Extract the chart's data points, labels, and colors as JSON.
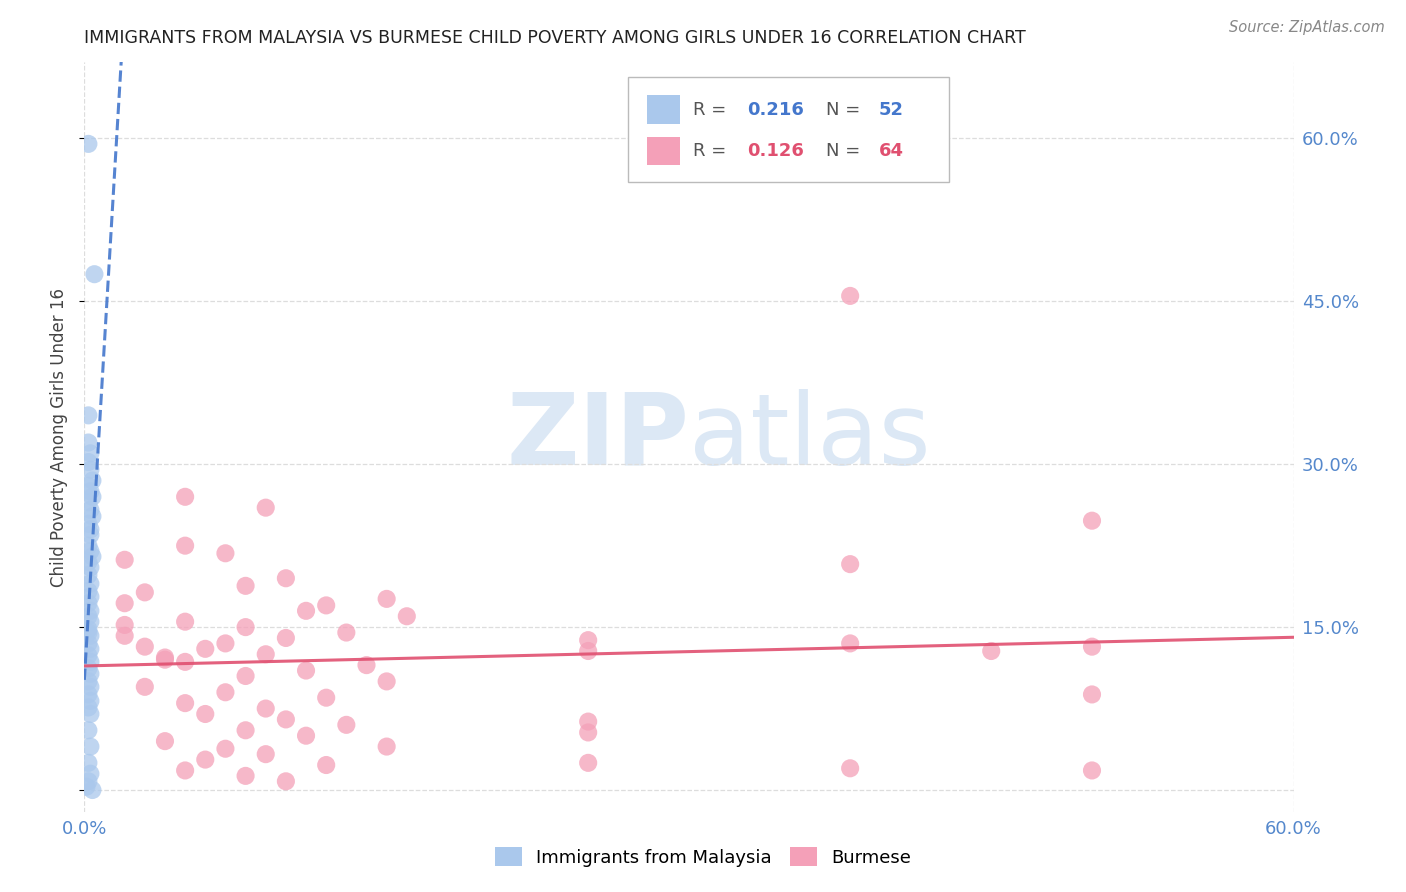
{
  "title": "IMMIGRANTS FROM MALAYSIA VS BURMESE CHILD POVERTY AMONG GIRLS UNDER 16 CORRELATION CHART",
  "source": "Source: ZipAtlas.com",
  "ylabel": "Child Poverty Among Girls Under 16",
  "xlim": [
    0.0,
    0.6
  ],
  "ylim": [
    -0.02,
    0.67
  ],
  "yticks": [
    0.0,
    0.15,
    0.3,
    0.45,
    0.6
  ],
  "ytick_labels": [
    "",
    "15.0%",
    "30.0%",
    "45.0%",
    "60.0%"
  ],
  "xticks": [
    0.0,
    0.6
  ],
  "xtick_labels": [
    "0.0%",
    "60.0%"
  ],
  "blue_color": "#aac8ec",
  "pink_color": "#f4a0b8",
  "blue_line_color": "#4477cc",
  "pink_line_color": "#e05070",
  "title_color": "#222222",
  "axis_label_color": "#444444",
  "tick_color": "#5588cc",
  "grid_color": "#dddddd",
  "watermark_color": "#dce8f5",
  "blue_scatter": [
    [
      0.002,
      0.595
    ],
    [
      0.005,
      0.475
    ],
    [
      0.002,
      0.345
    ],
    [
      0.003,
      0.295
    ],
    [
      0.004,
      0.285
    ],
    [
      0.002,
      0.28
    ],
    [
      0.003,
      0.275
    ],
    [
      0.004,
      0.27
    ],
    [
      0.002,
      0.265
    ],
    [
      0.003,
      0.258
    ],
    [
      0.004,
      0.252
    ],
    [
      0.002,
      0.245
    ],
    [
      0.003,
      0.24
    ],
    [
      0.002,
      0.225
    ],
    [
      0.003,
      0.22
    ],
    [
      0.004,
      0.215
    ],
    [
      0.002,
      0.21
    ],
    [
      0.003,
      0.205
    ],
    [
      0.002,
      0.198
    ],
    [
      0.003,
      0.19
    ],
    [
      0.002,
      0.183
    ],
    [
      0.003,
      0.178
    ],
    [
      0.002,
      0.172
    ],
    [
      0.003,
      0.165
    ],
    [
      0.002,
      0.16
    ],
    [
      0.003,
      0.155
    ],
    [
      0.002,
      0.148
    ],
    [
      0.003,
      0.142
    ],
    [
      0.002,
      0.135
    ],
    [
      0.003,
      0.13
    ],
    [
      0.002,
      0.124
    ],
    [
      0.003,
      0.118
    ],
    [
      0.002,
      0.112
    ],
    [
      0.003,
      0.107
    ],
    [
      0.002,
      0.1
    ],
    [
      0.003,
      0.095
    ],
    [
      0.002,
      0.088
    ],
    [
      0.003,
      0.082
    ],
    [
      0.002,
      0.076
    ],
    [
      0.003,
      0.07
    ],
    [
      0.002,
      0.055
    ],
    [
      0.003,
      0.04
    ],
    [
      0.002,
      0.025
    ],
    [
      0.003,
      0.015
    ],
    [
      0.002,
      0.008
    ],
    [
      0.001,
      0.003
    ],
    [
      0.004,
      0.0
    ],
    [
      0.002,
      0.32
    ],
    [
      0.003,
      0.31
    ],
    [
      0.002,
      0.302
    ],
    [
      0.003,
      0.235
    ],
    [
      0.002,
      0.145
    ]
  ],
  "pink_scatter": [
    [
      0.38,
      0.455
    ],
    [
      0.05,
      0.27
    ],
    [
      0.09,
      0.26
    ],
    [
      0.05,
      0.225
    ],
    [
      0.07,
      0.218
    ],
    [
      0.02,
      0.212
    ],
    [
      0.1,
      0.195
    ],
    [
      0.08,
      0.188
    ],
    [
      0.03,
      0.182
    ],
    [
      0.15,
      0.176
    ],
    [
      0.12,
      0.17
    ],
    [
      0.11,
      0.165
    ],
    [
      0.16,
      0.16
    ],
    [
      0.05,
      0.155
    ],
    [
      0.08,
      0.15
    ],
    [
      0.13,
      0.145
    ],
    [
      0.1,
      0.14
    ],
    [
      0.07,
      0.135
    ],
    [
      0.06,
      0.13
    ],
    [
      0.09,
      0.125
    ],
    [
      0.04,
      0.12
    ],
    [
      0.14,
      0.115
    ],
    [
      0.11,
      0.11
    ],
    [
      0.08,
      0.105
    ],
    [
      0.15,
      0.1
    ],
    [
      0.03,
      0.095
    ],
    [
      0.07,
      0.09
    ],
    [
      0.12,
      0.085
    ],
    [
      0.05,
      0.08
    ],
    [
      0.09,
      0.075
    ],
    [
      0.06,
      0.07
    ],
    [
      0.1,
      0.065
    ],
    [
      0.13,
      0.06
    ],
    [
      0.08,
      0.055
    ],
    [
      0.11,
      0.05
    ],
    [
      0.04,
      0.045
    ],
    [
      0.15,
      0.04
    ],
    [
      0.07,
      0.038
    ],
    [
      0.09,
      0.033
    ],
    [
      0.06,
      0.028
    ],
    [
      0.12,
      0.023
    ],
    [
      0.05,
      0.018
    ],
    [
      0.08,
      0.013
    ],
    [
      0.1,
      0.008
    ],
    [
      0.38,
      0.208
    ],
    [
      0.38,
      0.135
    ],
    [
      0.5,
      0.248
    ],
    [
      0.5,
      0.132
    ],
    [
      0.5,
      0.088
    ],
    [
      0.5,
      0.018
    ],
    [
      0.45,
      0.128
    ],
    [
      0.25,
      0.138
    ],
    [
      0.25,
      0.128
    ],
    [
      0.25,
      0.063
    ],
    [
      0.25,
      0.053
    ],
    [
      0.02,
      0.172
    ],
    [
      0.02,
      0.152
    ],
    [
      0.02,
      0.142
    ],
    [
      0.03,
      0.132
    ],
    [
      0.04,
      0.122
    ],
    [
      0.05,
      0.118
    ],
    [
      0.38,
      0.02
    ],
    [
      0.25,
      0.025
    ]
  ],
  "blue_trend_x": [
    0.0,
    0.6
  ],
  "pink_trend_x": [
    0.0,
    0.6
  ]
}
